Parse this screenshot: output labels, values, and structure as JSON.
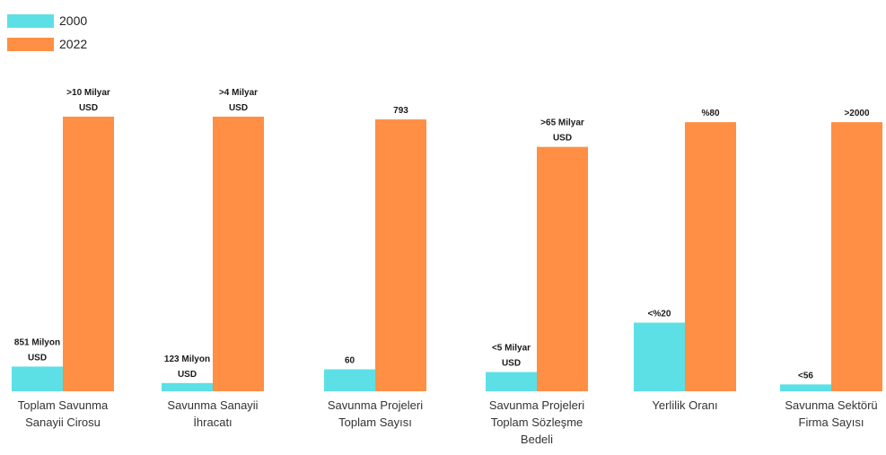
{
  "chart_data": {
    "type": "bar",
    "categories": [
      [
        "Toplam Savunma",
        "Sanayii Cirosu"
      ],
      [
        "Savunma Sanayii",
        "İhracatı"
      ],
      [
        "Savunma Projeleri",
        "Toplam Sayısı"
      ],
      [
        "Savunma Projeleri",
        "Toplam Sözleşme",
        "Bedeli"
      ],
      [
        "Yerlilik Oranı"
      ],
      [
        "Savunma Sektörü",
        "Firma Sayısı"
      ]
    ],
    "series": [
      {
        "name": "2000",
        "color": "#5ce0e6",
        "relative_heights": [
          0.09,
          0.03,
          0.08,
          0.07,
          0.25,
          0.025
        ],
        "labels": [
          [
            "851 Milyon",
            "USD"
          ],
          [
            "123 Milyon",
            "USD"
          ],
          [
            "60"
          ],
          [
            "<5 Milyar",
            "USD"
          ],
          [
            "<%20"
          ],
          [
            "<56"
          ]
        ]
      },
      {
        "name": "2022",
        "color": "#ff8f44",
        "relative_heights": [
          1.0,
          1.0,
          0.99,
          0.89,
          0.98,
          0.98
        ],
        "labels": [
          [
            ">10 Milyar",
            "USD"
          ],
          [
            ">4 Milyar",
            "USD"
          ],
          [
            "793"
          ],
          [
            ">65 Milyar",
            "USD"
          ],
          [
            "%80"
          ],
          [
            ">2000"
          ]
        ]
      }
    ],
    "title": "",
    "xlabel": "",
    "ylabel": "",
    "legend_position": "top-left",
    "grid": false
  }
}
